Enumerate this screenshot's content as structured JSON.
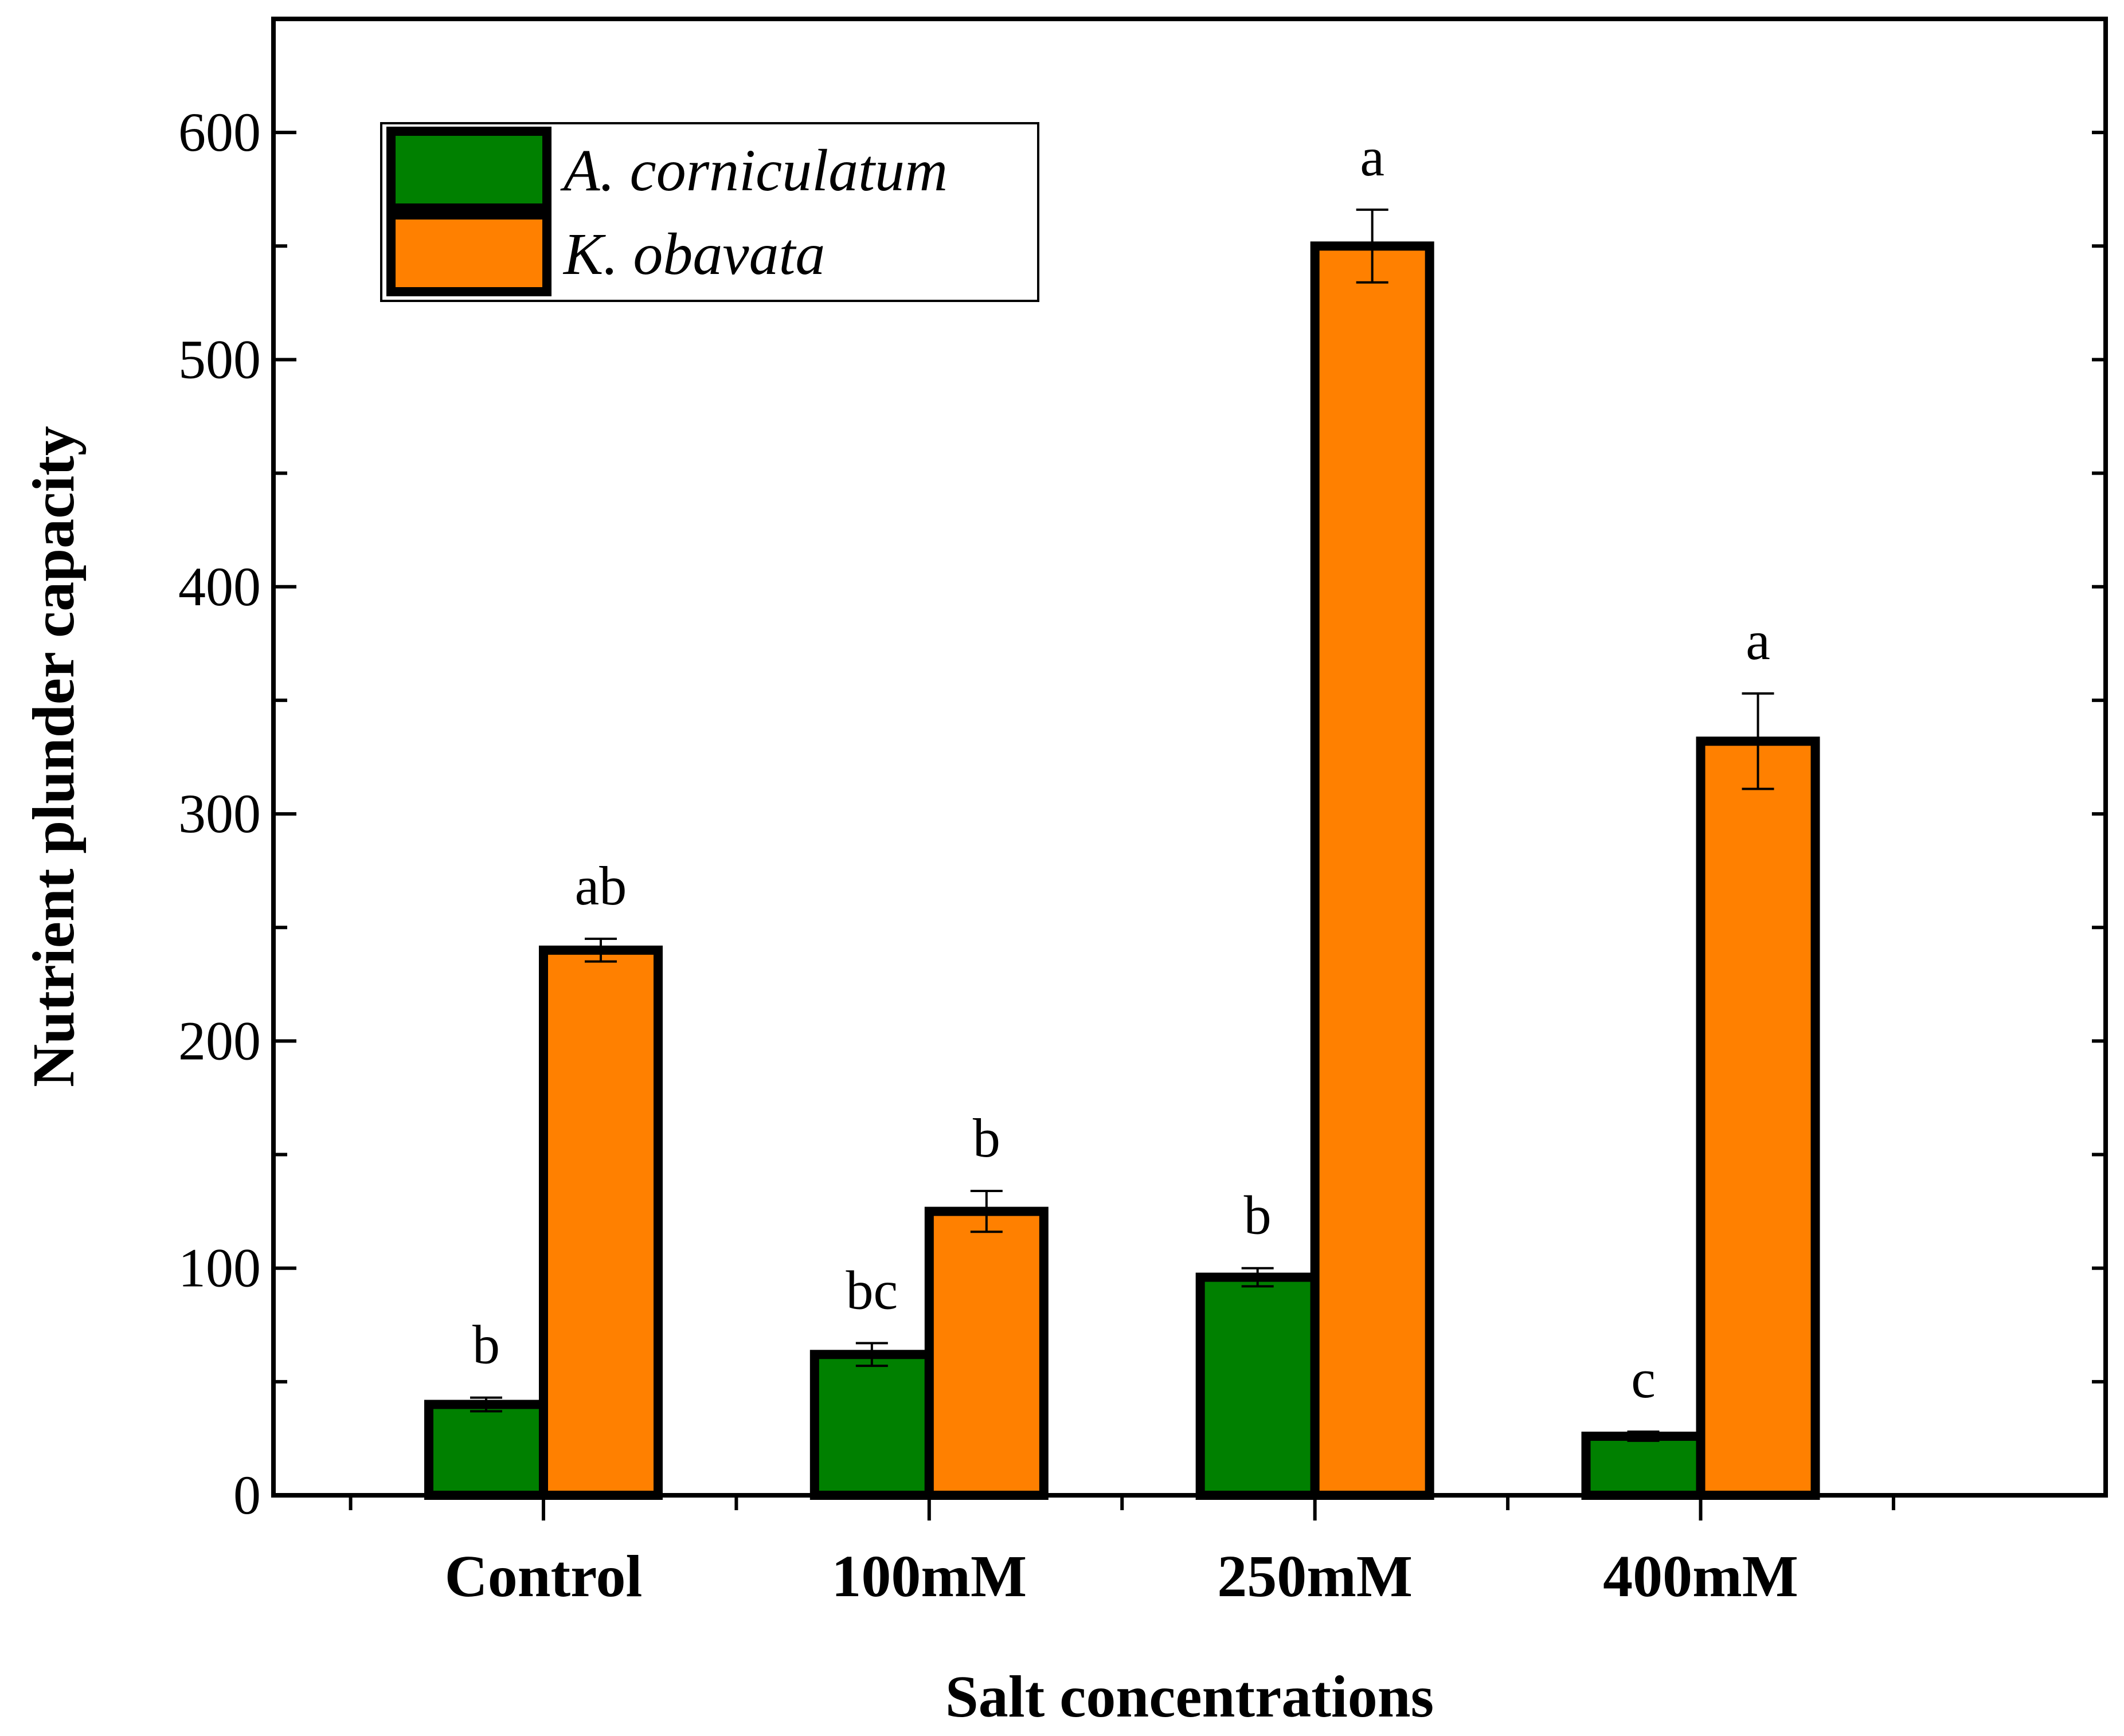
{
  "chart_data": {
    "type": "bar",
    "title": "",
    "xlabel": "Salt concentrations",
    "ylabel": "Nutrient plunder capacity",
    "ylim": [
      0,
      650
    ],
    "yticks": [
      0,
      100,
      200,
      300,
      400,
      500,
      600
    ],
    "yticklabels": [
      "0",
      "100",
      "200",
      "300",
      "400",
      "500",
      "600"
    ],
    "categories": [
      "Control",
      "100mM",
      "250mM",
      "400mM"
    ],
    "series": [
      {
        "name": "A. corniculatum",
        "color": "#008000",
        "values": [
          40,
          62,
          96,
          26
        ],
        "errors": [
          3,
          5,
          4,
          2
        ],
        "significance": [
          "b",
          "bc",
          "b",
          "c"
        ]
      },
      {
        "name": "K. obavata",
        "color": "#ff8000",
        "values": [
          240,
          125,
          550,
          332
        ],
        "errors": [
          5,
          9,
          16,
          21
        ],
        "significance": [
          "ab",
          "b",
          "a",
          "a"
        ]
      }
    ],
    "legend_position": "top-left",
    "grid": false
  }
}
